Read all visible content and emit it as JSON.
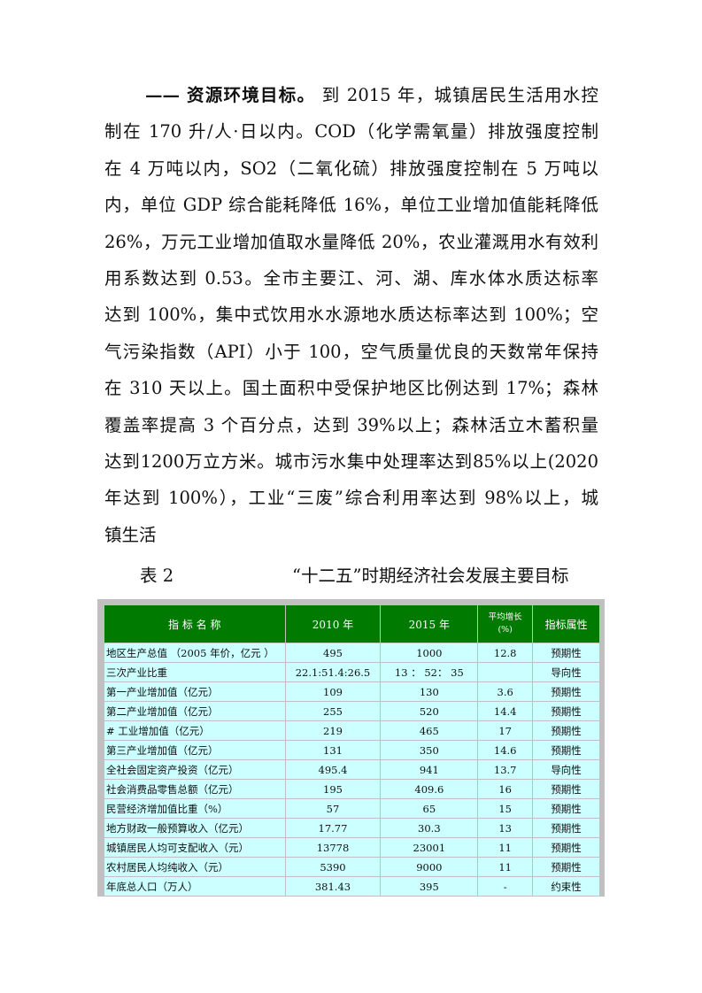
{
  "paragraph": {
    "heading": "—— 资源环境目标。",
    "lines": [
      " 到 2015 年，城镇居民生活用水控",
      "制在 170 升/人·日以内。COD（化学需氧量）排放强度控制",
      "在 4 万吨以内，SO2（二氧化硫）排放强度控制在 5 万吨以",
      "内，单位 GDP 综合能耗降低 16%，单位工业增加值能耗降低",
      "26%，万元工业增加值取水量降低 20%，农业灌溉用水有效利",
      "用系数达到 0.53。全市主要江、河、湖、库水体水质达标率",
      "达到 100%，集中式饮用水水源地水质达标率达到 100%；空",
      "气污染指数（API）小于 100，空气质量优良的天数常年保持",
      "在 310 天以上。国土面积中受保护地区比例达到 17%；森林",
      "覆盖率提高 3 个百分点，达到 39%以上；森林活立木蓄积量",
      "达到1200万立方米。城市污水集中处理率达到85%以上(2020",
      "年达到 100%），工业“三废”综合利用率达到 98%以上，城",
      "镇生活"
    ]
  },
  "table": {
    "label": "表 2",
    "title": "“十二五”时期经济社会发展主要目标",
    "headers": [
      "指 标 名 称",
      "2010 年",
      "2015 年",
      "平均增长",
      "(%)",
      "指标属性"
    ],
    "rows": [
      [
        "地区生产总值 （2005 年价，亿元 ）",
        "495",
        "1000",
        "12.8",
        "预期性"
      ],
      [
        "三次产业比重",
        "22.1:51.4:26.5",
        "13 ： 52： 35",
        "",
        "导向性"
      ],
      [
        "第一产业增加值（亿元）",
        "109",
        "130",
        "3.6",
        "预期性"
      ],
      [
        "第二产业增加值（亿元）",
        "255",
        "520",
        "14.4",
        "预期性"
      ],
      [
        "#  工业增加值（亿元）",
        "219",
        "465",
        "17",
        "预期性"
      ],
      [
        "第三产业增加值（亿元）",
        "131",
        "350",
        "14.6",
        "预期性"
      ],
      [
        "全社会固定资产投资（亿元）",
        "495.4",
        "941",
        "13.7",
        "导向性"
      ],
      [
        "社会消费品零售总额（亿元）",
        "195",
        "409.6",
        "16",
        "预期性"
      ],
      [
        "民营经济增加值比重（%）",
        "57",
        "65",
        "15",
        "预期性"
      ],
      [
        "地方财政一般预算收入（亿元）",
        "17.77",
        "30.3",
        "13",
        "预期性"
      ],
      [
        "城镇居民人均可支配收入（元）",
        "13778",
        "23001",
        "11",
        "预期性"
      ],
      [
        "农村居民人均纯收入（元）",
        "5390",
        "9000",
        "11",
        "预期性"
      ],
      [
        "年底总人口（万人）",
        "381.43",
        "395",
        "-",
        "约束性"
      ]
    ],
    "colors": {
      "header_bg": "#007a00",
      "cell_bg": "#ccffff",
      "frame": "#c0c0c0"
    }
  }
}
